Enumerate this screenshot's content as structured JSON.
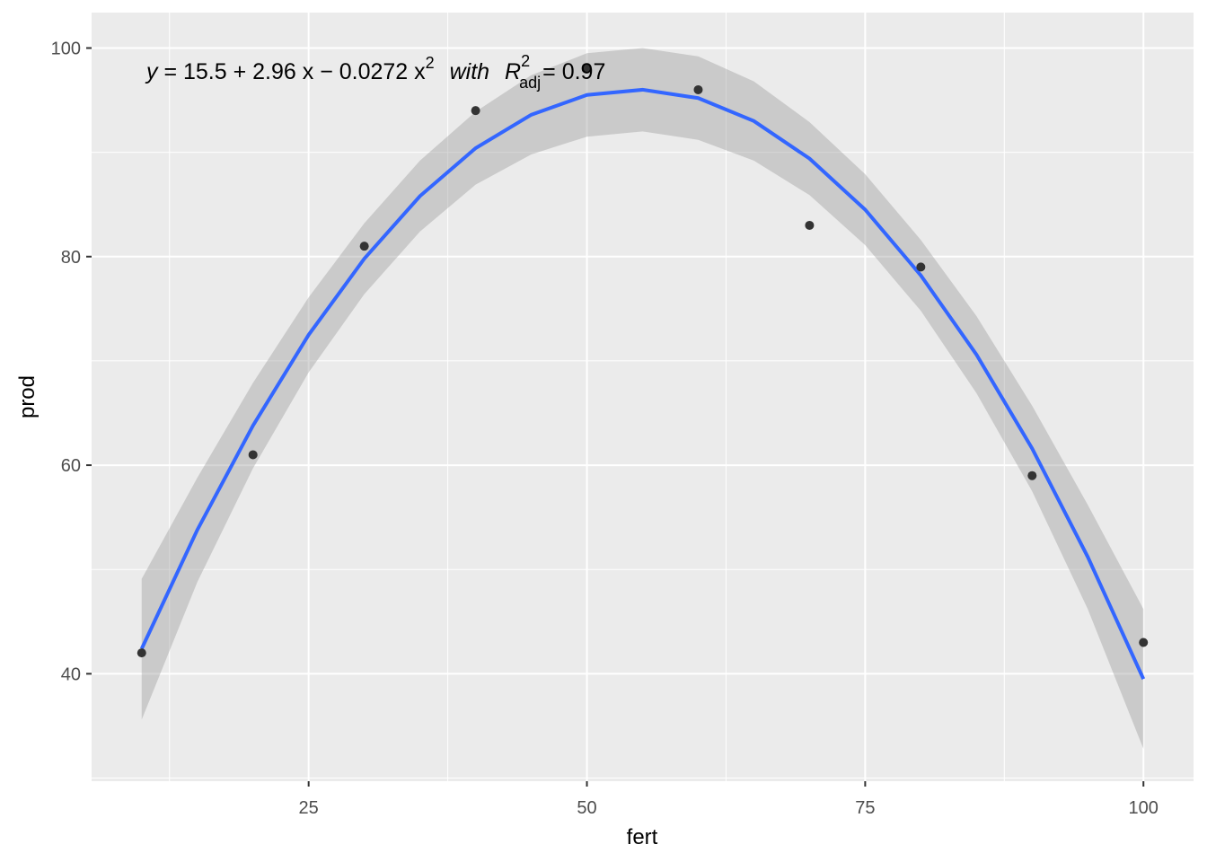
{
  "chart_data": {
    "type": "scatter",
    "x_label": "fert",
    "y_label": "prod",
    "x": [
      10,
      20,
      30,
      40,
      50,
      60,
      70,
      80,
      90,
      100
    ],
    "values": [
      42,
      61,
      81,
      94,
      98,
      96,
      83,
      79,
      59,
      43
    ],
    "point_color": "#333333",
    "fit": {
      "x": [
        10,
        15,
        20,
        25,
        30,
        35,
        40,
        45,
        50,
        55,
        60,
        65,
        70,
        75,
        80,
        85,
        90,
        95,
        100
      ],
      "values": [
        42.4,
        53.8,
        63.8,
        72.5,
        79.8,
        85.8,
        90.4,
        93.6,
        95.5,
        96.0,
        95.2,
        93.0,
        89.4,
        84.5,
        78.2,
        70.6,
        61.6,
        51.2,
        39.5
      ],
      "lower": [
        35.6,
        48.8,
        59.7,
        68.9,
        76.4,
        82.4,
        86.9,
        89.8,
        91.5,
        92.0,
        91.2,
        89.2,
        85.9,
        81.1,
        74.8,
        66.9,
        57.5,
        46.2,
        32.8
      ],
      "upper": [
        49.1,
        58.8,
        67.9,
        76.1,
        83.2,
        89.2,
        93.9,
        97.4,
        99.5,
        100.0,
        99.2,
        96.8,
        92.9,
        87.9,
        81.6,
        74.3,
        65.7,
        56.2,
        46.2
      ],
      "color": "#3366FF",
      "band_color": "#999999"
    },
    "equation": {
      "y": "y",
      "rhs": "= 15.5 + 2.96 x − 0.0272 x",
      "power": "2",
      "with": "with",
      "r": "R",
      "r_power": "2",
      "r_sub": "adj",
      "r_value": "= 0.97"
    },
    "xlim": [
      5.5,
      104.5
    ],
    "ylim": [
      29.7,
      103.4
    ],
    "xticks": [
      25,
      50,
      75,
      100
    ],
    "yticks": [
      40,
      60,
      80,
      100
    ],
    "grid": true
  }
}
